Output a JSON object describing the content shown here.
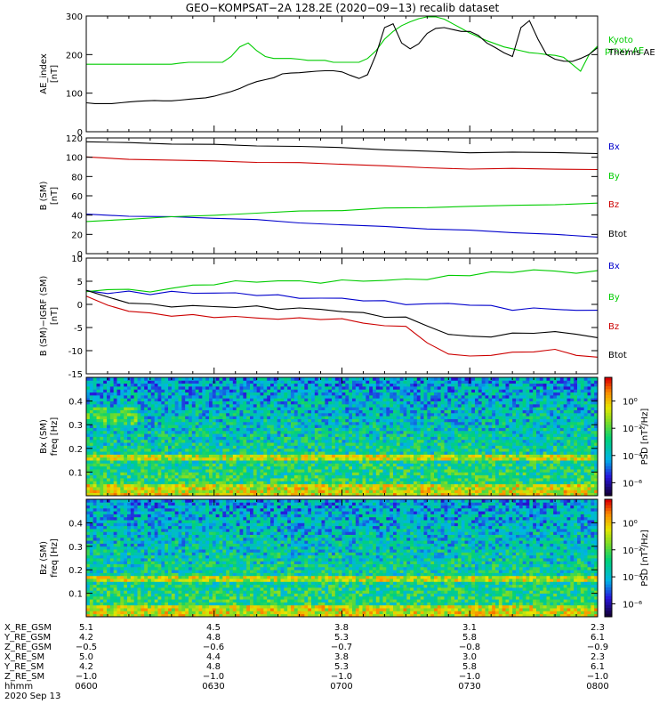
{
  "title": "GEO−KOMPSAT−2A 128.2E (2020−09−13) recalib dataset",
  "chart_data": [
    {
      "type": "line",
      "ylabel": [
        "AE_index",
        "[nT]"
      ],
      "ylim": [
        0,
        300
      ],
      "yticks": [
        0,
        100,
        200,
        300
      ],
      "x": [
        0,
        2,
        4,
        6,
        8,
        10,
        12,
        14,
        16,
        18,
        20,
        22,
        24,
        26,
        28,
        30,
        32,
        34,
        36,
        38,
        40,
        42,
        44,
        46,
        48,
        50,
        52,
        54,
        56,
        58,
        60,
        62,
        64,
        66,
        68,
        70,
        72,
        74,
        76,
        78,
        80,
        82,
        84,
        86,
        88,
        90,
        92,
        94,
        96,
        98,
        100,
        102,
        104,
        106,
        108,
        110,
        112,
        114,
        116,
        118,
        120
      ],
      "series": [
        {
          "name": "Kyoto proxy AE",
          "color": "#00cc00",
          "values": [
            175,
            175,
            175,
            175,
            175,
            175,
            175,
            175,
            175,
            175,
            175,
            178,
            180,
            180,
            180,
            180,
            180,
            195,
            220,
            230,
            210,
            195,
            190,
            190,
            190,
            188,
            185,
            185,
            185,
            180,
            180,
            180,
            180,
            190,
            210,
            240,
            260,
            275,
            285,
            293,
            298,
            298,
            292,
            280,
            268,
            256,
            246,
            236,
            228,
            220,
            215,
            210,
            205,
            203,
            200,
            198,
            193,
            175,
            157,
            200,
            222
          ]
        },
        {
          "name": "Themis AE",
          "color": "#000000",
          "values": [
            75,
            73,
            73,
            73,
            75,
            77,
            79,
            80,
            81,
            80,
            80,
            82,
            84,
            86,
            88,
            92,
            98,
            104,
            112,
            122,
            130,
            135,
            140,
            150,
            152,
            153,
            155,
            157,
            158,
            158,
            155,
            146,
            138,
            148,
            200,
            270,
            280,
            230,
            215,
            228,
            255,
            268,
            270,
            265,
            260,
            260,
            250,
            230,
            218,
            205,
            195,
            270,
            288,
            240,
            200,
            188,
            183,
            182,
            190,
            200,
            218
          ]
        }
      ]
    },
    {
      "type": "line",
      "ylabel": [
        "B (SM)",
        "[nT]"
      ],
      "ylim": [
        0,
        120
      ],
      "yticks": [
        0,
        20,
        40,
        60,
        80,
        100,
        120
      ],
      "x": [
        0,
        10,
        20,
        30,
        40,
        50,
        60,
        70,
        80,
        90,
        100,
        110,
        120
      ],
      "series": [
        {
          "name": "Bx",
          "color": "#0000cc",
          "values": [
            41,
            39,
            38,
            37,
            35,
            32,
            30,
            28,
            26,
            24,
            22,
            20,
            17
          ]
        },
        {
          "name": "By",
          "color": "#00cc00",
          "values": [
            33,
            36,
            38,
            40,
            42,
            44,
            45,
            47,
            48,
            49,
            50,
            51,
            52
          ]
        },
        {
          "name": "Bz",
          "color": "#cc0000",
          "values": [
            100,
            98,
            97,
            96,
            95,
            94,
            93,
            91,
            89,
            88,
            88,
            88,
            87
          ]
        },
        {
          "name": "Btot",
          "color": "#000000",
          "values": [
            116,
            115,
            114,
            113,
            112,
            111,
            110,
            108,
            106,
            105,
            105,
            105,
            104
          ]
        }
      ]
    },
    {
      "type": "line",
      "ylabel": [
        "B (SM)−IGRF (SM)",
        "[nT]"
      ],
      "ylim": [
        -15,
        10
      ],
      "yticks": [
        -15,
        -10,
        -5,
        0,
        5,
        10
      ],
      "x": [
        0,
        5,
        10,
        15,
        20,
        25,
        30,
        35,
        40,
        45,
        50,
        55,
        60,
        65,
        70,
        75,
        80,
        85,
        90,
        95,
        100,
        105,
        110,
        115,
        120
      ],
      "series": [
        {
          "name": "Bx",
          "color": "#0000cc",
          "values": [
            3,
            2.5,
            2.6,
            2.4,
            2.6,
            2.5,
            2.5,
            2.3,
            2.2,
            1.8,
            1.5,
            1.3,
            1.2,
            1.0,
            0.5,
            0.2,
            0.0,
            0.2,
            0.0,
            -0.5,
            -1.0,
            -1.0,
            -1.0,
            -1.2,
            -1.5
          ]
        },
        {
          "name": "By",
          "color": "#00cc00",
          "values": [
            2.5,
            3.5,
            3.0,
            2.8,
            3.5,
            4.0,
            4.5,
            4.8,
            5.0,
            5.0,
            5.0,
            4.8,
            5.0,
            5.3,
            5.0,
            5.5,
            5.5,
            6.0,
            6.5,
            6.8,
            7.0,
            7.5,
            7.0,
            7.0,
            7.0
          ]
        },
        {
          "name": "Bz",
          "color": "#cc0000",
          "values": [
            1.5,
            0.0,
            -1.5,
            -2.0,
            -2.3,
            -2.5,
            -2.6,
            -2.7,
            -3.0,
            -3.0,
            -3.2,
            -3.0,
            -3.3,
            -4.0,
            -4.5,
            -5.0,
            -8.0,
            -11.0,
            -11.0,
            -11.0,
            -10.5,
            -10.0,
            -10.0,
            -10.8,
            -11.5
          ]
        },
        {
          "name": "Btot",
          "color": "#000000",
          "values": [
            3.0,
            1.5,
            0.5,
            -0.2,
            -0.3,
            -0.4,
            -0.5,
            -0.5,
            -0.6,
            -0.8,
            -1.0,
            -1.0,
            -1.5,
            -2.0,
            -2.5,
            -3.0,
            -4.5,
            -6.5,
            -7.0,
            -6.8,
            -6.5,
            -6.0,
            -6.0,
            -6.5,
            -7.0
          ]
        }
      ]
    },
    {
      "type": "heatmap",
      "ylabel": [
        "Bx (SM)",
        "freq [Hz]"
      ],
      "ylim": [
        0,
        0.5
      ],
      "yticks": [
        0.1,
        0.2,
        0.3,
        0.4
      ],
      "colorbar": {
        "label": "PSD [nT²/Hz]",
        "ticks": [
          "10⁰",
          "10⁻²",
          "10⁻⁴",
          "10⁻⁶"
        ]
      }
    },
    {
      "type": "heatmap",
      "ylabel": [
        "Bz (SM)",
        "freq [Hz]"
      ],
      "ylim": [
        0,
        0.5
      ],
      "yticks": [
        0.1,
        0.2,
        0.3,
        0.4
      ],
      "colorbar": {
        "label": "PSD [nT²/Hz]",
        "ticks": [
          "10⁰",
          "10⁻²",
          "10⁻⁴",
          "10⁻⁶"
        ]
      }
    }
  ],
  "ephemeris": {
    "labels": [
      "X_RE_GSM",
      "Y_RE_GSM",
      "Z_RE_GSM",
      "X_RE_SM",
      "Y_RE_SM",
      "Z_RE_SM",
      "hhmm"
    ],
    "columns": [
      [
        "5.1",
        "4.2",
        "−0.5",
        "5.0",
        "4.2",
        "−1.0",
        "0600"
      ],
      [
        "4.5",
        "4.8",
        "−0.6",
        "4.4",
        "4.8",
        "−1.0",
        "0630"
      ],
      [
        "3.8",
        "5.3",
        "−0.7",
        "3.8",
        "5.3",
        "−1.0",
        "0700"
      ],
      [
        "3.1",
        "5.8",
        "−0.8",
        "3.0",
        "5.8",
        "−1.0",
        "0730"
      ],
      [
        "2.3",
        "6.1",
        "−0.9",
        "2.3",
        "6.1",
        "−1.0",
        "0800"
      ]
    ],
    "date": "2020 Sep 13"
  }
}
